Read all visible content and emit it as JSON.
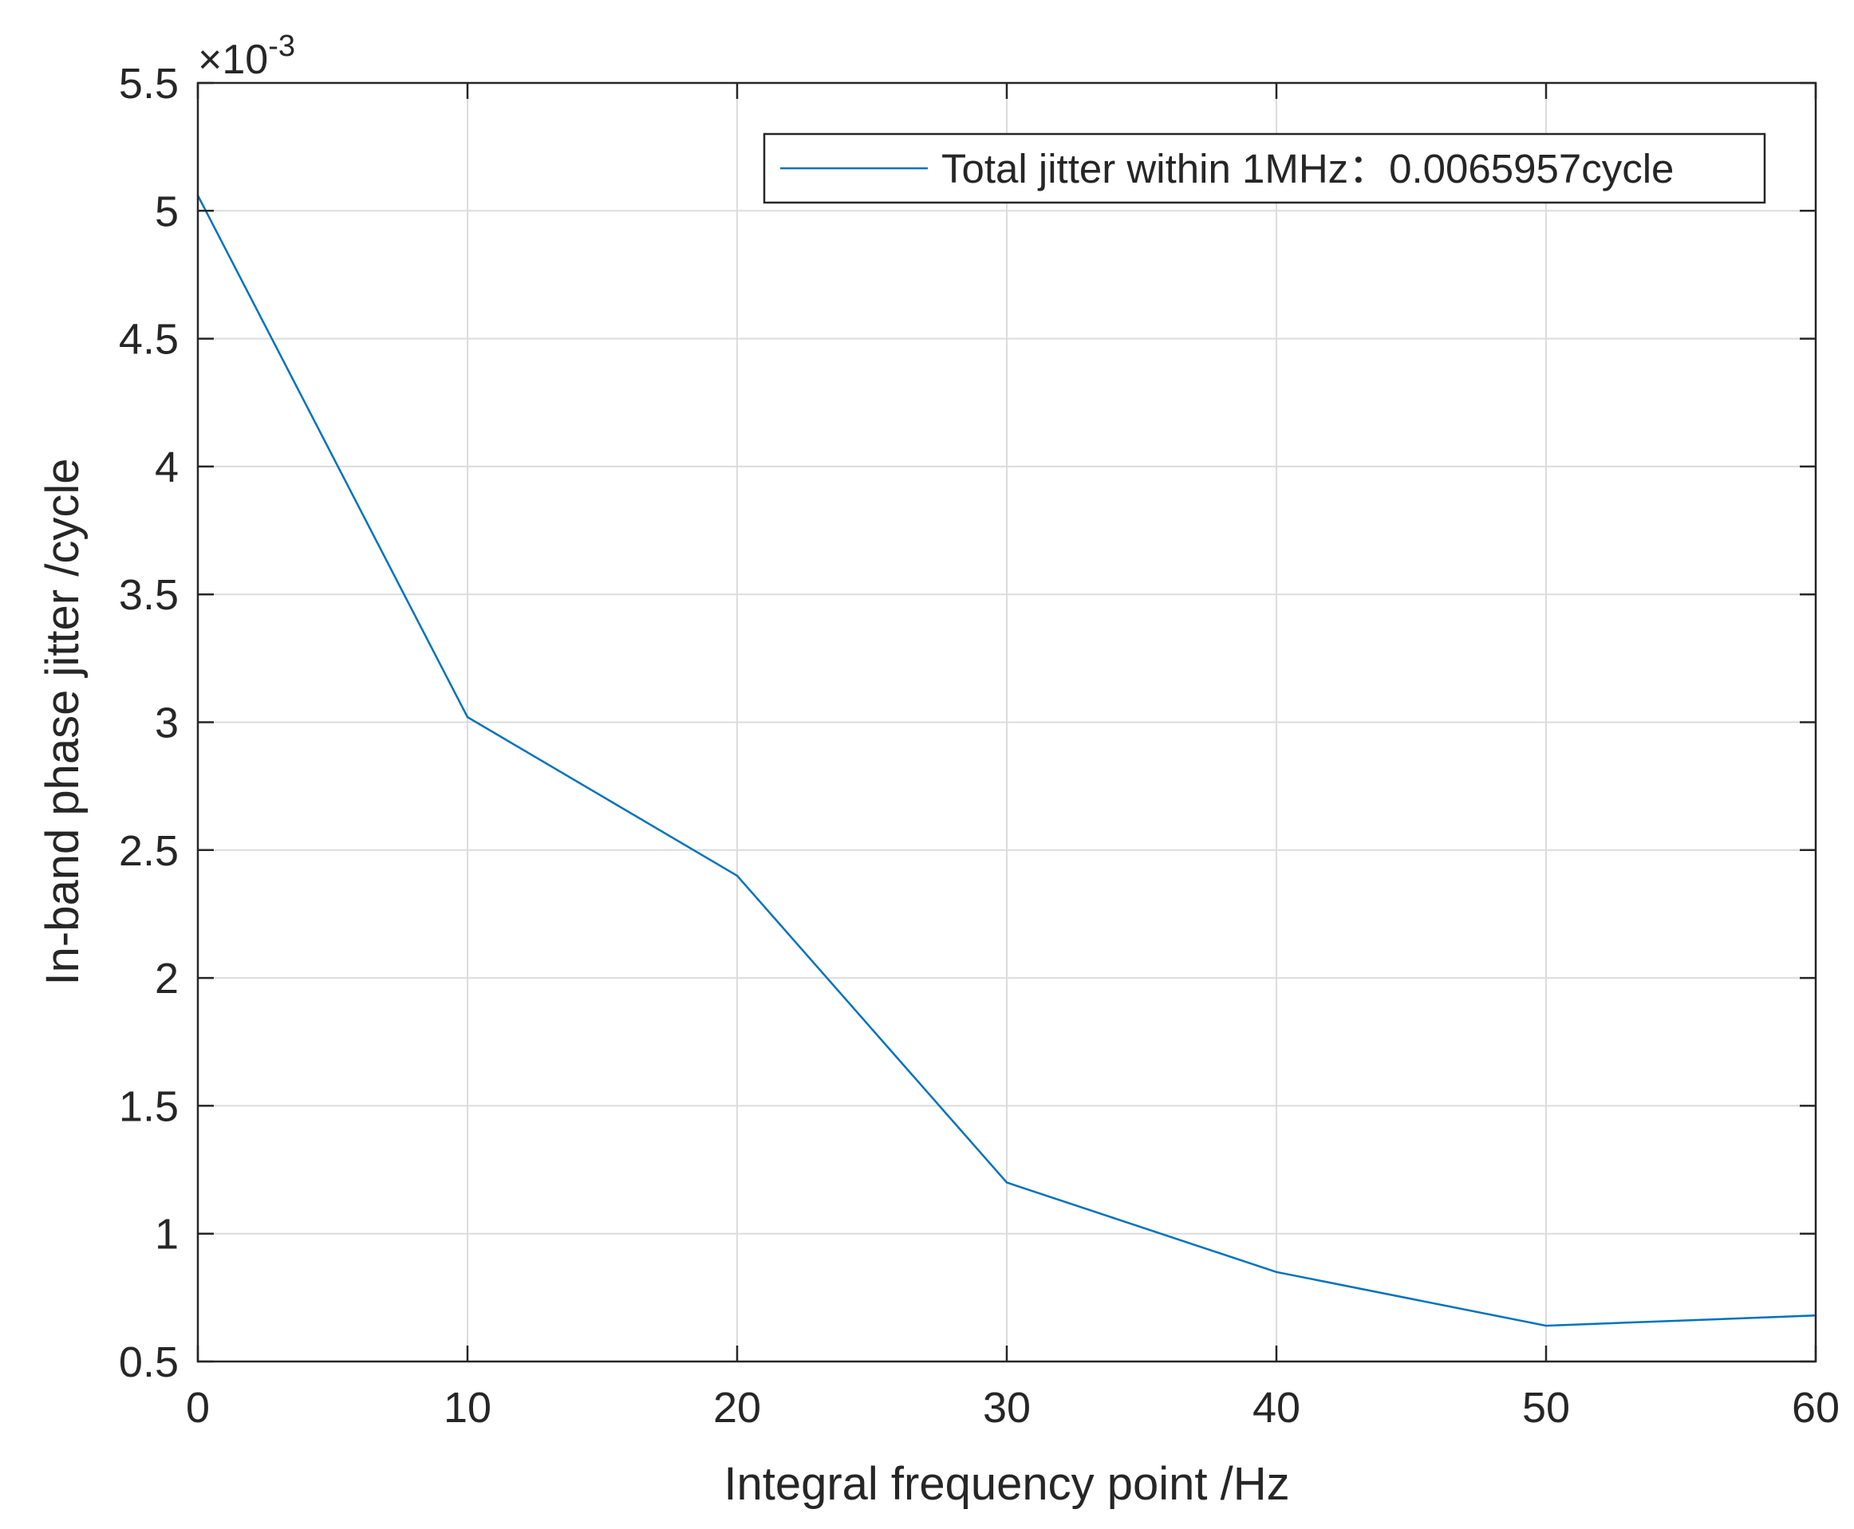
{
  "chart_data": {
    "type": "line",
    "xlabel": "Integral frequency point /Hz",
    "ylabel": "In-band phase jitter /cycle",
    "xlim": [
      0,
      60
    ],
    "ylim": [
      0.5,
      5.5
    ],
    "x_ticks": [
      "0",
      "10",
      "20",
      "30",
      "40",
      "50",
      "60"
    ],
    "y_ticks": [
      "0.5",
      "1",
      "1.5",
      "2",
      "2.5",
      "3",
      "3.5",
      "4",
      "4.5",
      "5",
      "5.5"
    ],
    "y_exponent": {
      "base": "×10",
      "power": "-3"
    },
    "grid": true,
    "legend_position": "top-right",
    "series": [
      {
        "name": "Total jitter within 1MHz：0.0065957cycle",
        "color": "#0072BD",
        "x": [
          0,
          10,
          20,
          30,
          40,
          50,
          60
        ],
        "y": [
          5.06,
          3.02,
          2.4,
          1.2,
          0.85,
          0.64,
          0.68
        ]
      }
    ]
  }
}
